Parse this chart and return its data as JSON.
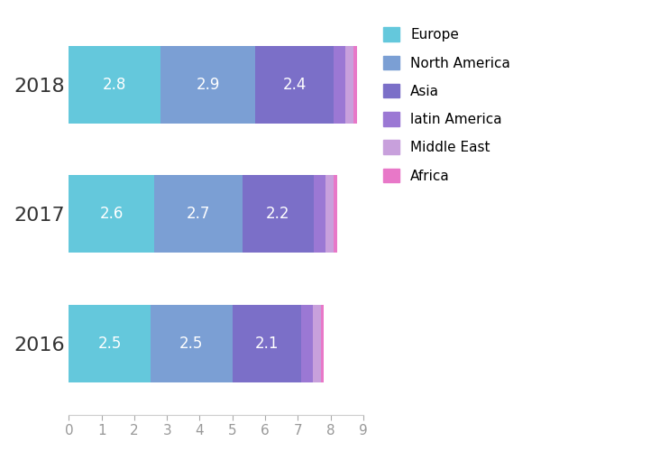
{
  "years": [
    "2018",
    "2017",
    "2016"
  ],
  "segments": [
    "Europe",
    "North America",
    "Asia",
    "latin America",
    "Middle East",
    "Africa"
  ],
  "colors": [
    "#64C8DC",
    "#7B9FD4",
    "#7B6FC8",
    "#9B78D4",
    "#C8A0DC",
    "#E878C8"
  ],
  "values": {
    "2018": [
      2.8,
      2.9,
      2.4,
      0.35,
      0.25,
      0.1
    ],
    "2017": [
      2.6,
      2.7,
      2.2,
      0.35,
      0.25,
      0.1
    ],
    "2016": [
      2.5,
      2.5,
      2.1,
      0.35,
      0.25,
      0.1
    ]
  },
  "label_values": {
    "2018": [
      2.8,
      2.9,
      2.4
    ],
    "2017": [
      2.6,
      2.7,
      2.2
    ],
    "2016": [
      2.5,
      2.5,
      2.1
    ]
  },
  "xlim": [
    0,
    9
  ],
  "xticks": [
    0,
    1,
    2,
    3,
    4,
    5,
    6,
    7,
    8,
    9
  ],
  "bar_height": 0.6,
  "background_color": "#ffffff",
  "text_color": "#ffffff",
  "label_fontsize": 12,
  "legend_fontsize": 11,
  "tick_fontsize": 11,
  "ytick_fontsize": 16
}
